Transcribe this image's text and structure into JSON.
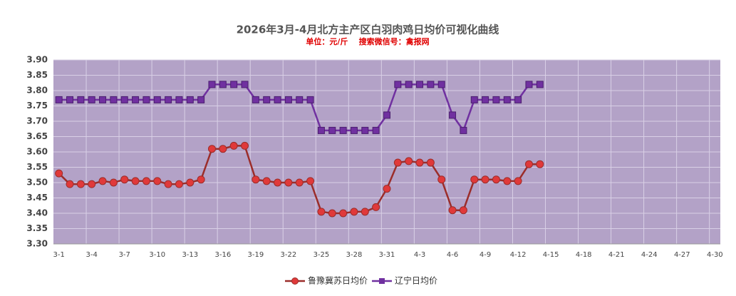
{
  "chart_data": {
    "type": "line",
    "title": "2026年3月-4月北方主产区白羽肉鸡日均价可视化曲线",
    "subtitle": "单位：元/斤    搜索微信号：禽报网",
    "categories": [
      "3-1",
      null,
      null,
      "3-4",
      null,
      null,
      "3-7",
      null,
      null,
      "3-10",
      null,
      null,
      "3-13",
      null,
      null,
      "3-16",
      null,
      null,
      "3-19",
      null,
      null,
      "3-22",
      null,
      null,
      "3-25",
      null,
      null,
      "3-28",
      null,
      null,
      "3-31",
      null,
      null,
      "4-3",
      null,
      null,
      "4-6",
      null,
      null,
      "4-9",
      null,
      null,
      "4-12",
      null,
      null,
      "4-15",
      null,
      null,
      "4-18",
      null,
      null,
      "4-21",
      null,
      null,
      "4-24",
      null,
      null,
      "4-27",
      null,
      null,
      "4-30"
    ],
    "series": [
      {
        "name": "鲁豫冀苏日均价",
        "color": "#9b2d2a",
        "marker_color": "#e0393a",
        "marker": "circle",
        "values": [
          3.53,
          3.495,
          3.495,
          3.495,
          3.505,
          3.5,
          3.51,
          3.505,
          3.505,
          3.505,
          3.495,
          3.495,
          3.5,
          3.51,
          3.61,
          3.61,
          3.62,
          3.62,
          3.51,
          3.505,
          3.5,
          3.5,
          3.5,
          3.505,
          3.405,
          3.4,
          3.4,
          3.405,
          3.405,
          3.42,
          3.48,
          3.565,
          3.57,
          3.565,
          3.565,
          3.51,
          3.41,
          3.41,
          3.51,
          3.51,
          3.51,
          3.505,
          3.505,
          3.56,
          3.56,
          null,
          null,
          null,
          null,
          null,
          null,
          null,
          null,
          null,
          null,
          null,
          null,
          null,
          null,
          null,
          null
        ]
      },
      {
        "name": "辽宁日均价",
        "color": "#7030a0",
        "marker_color": "#7030a0",
        "marker": "square",
        "values": [
          3.77,
          3.77,
          3.77,
          3.77,
          3.77,
          3.77,
          3.77,
          3.77,
          3.77,
          3.77,
          3.77,
          3.77,
          3.77,
          3.77,
          3.82,
          3.82,
          3.82,
          3.82,
          3.77,
          3.77,
          3.77,
          3.77,
          3.77,
          3.77,
          3.67,
          3.67,
          3.67,
          3.67,
          3.67,
          3.67,
          3.72,
          3.82,
          3.82,
          3.82,
          3.82,
          3.82,
          3.72,
          3.67,
          3.77,
          3.77,
          3.77,
          3.77,
          3.77,
          3.82,
          3.82,
          null,
          null,
          null,
          null,
          null,
          null,
          null,
          null,
          null,
          null,
          null,
          null,
          null,
          null,
          null,
          null
        ]
      }
    ],
    "ylim": [
      3.3,
      3.9
    ],
    "yticks": [
      {
        "value": 3.3,
        "label": "3.30"
      },
      {
        "value": 3.35,
        "label": "3.35"
      },
      {
        "value": 3.4,
        "label": "3.40"
      },
      {
        "value": 3.45,
        "label": "3.45"
      },
      {
        "value": 3.5,
        "label": "3.50"
      },
      {
        "value": 3.55,
        "label": "3.55"
      },
      {
        "value": 3.6,
        "label": "3.60"
      },
      {
        "value": 3.65,
        "label": "3.65"
      },
      {
        "value": 3.7,
        "label": "3.70"
      },
      {
        "value": 3.75,
        "label": "3.75"
      },
      {
        "value": 3.8,
        "label": "3.80"
      },
      {
        "value": 3.85,
        "label": "3.85"
      },
      {
        "value": 3.9,
        "label": "3.90"
      }
    ],
    "grid": true,
    "plot_background": "#b3a2c7",
    "legend": "bottom"
  }
}
